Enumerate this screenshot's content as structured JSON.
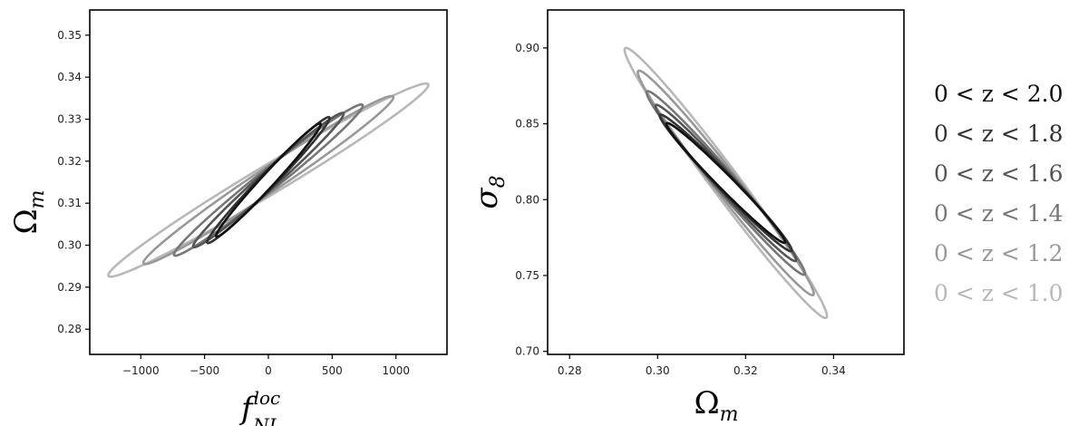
{
  "chart_data": [
    {
      "type": "line",
      "subtype": "confidence-ellipses",
      "title": "",
      "xlabel": "f_NL^loc",
      "ylabel": "Ω_m",
      "xlim": [
        -1400,
        1400
      ],
      "ylim": [
        0.274,
        0.356
      ],
      "xticks": [
        "−1000",
        "−500",
        "0",
        "500",
        "1000"
      ],
      "xtick_values": [
        -1000,
        -500,
        0,
        500,
        1000
      ],
      "yticks": [
        "0.28",
        "0.29",
        "0.30",
        "0.31",
        "0.32",
        "0.33",
        "0.34",
        "0.35"
      ],
      "ytick_values": [
        0.28,
        0.29,
        0.3,
        0.31,
        0.32,
        0.33,
        0.34,
        0.35
      ],
      "grid": false,
      "series": [
        {
          "name": "0 < z < 1.0",
          "color": "#b8b8b8",
          "center": [
            0,
            0.3155
          ],
          "x_extent": [
            -1250,
            1260
          ],
          "y_extent": [
            0.292,
            0.338
          ]
        },
        {
          "name": "0 < z < 1.2",
          "color": "#999999",
          "center": [
            0,
            0.3155
          ],
          "x_extent": [
            -970,
            990
          ],
          "y_extent": [
            0.295,
            0.335
          ]
        },
        {
          "name": "0 < z < 1.4",
          "color": "#777777",
          "center": [
            0,
            0.3155
          ],
          "x_extent": [
            -730,
            750
          ],
          "y_extent": [
            0.297,
            0.333
          ]
        },
        {
          "name": "0 < z < 1.6",
          "color": "#555555",
          "center": [
            0,
            0.3155
          ],
          "x_extent": [
            -580,
            600
          ],
          "y_extent": [
            0.299,
            0.331
          ]
        },
        {
          "name": "0 < z < 1.8",
          "color": "#333333",
          "center": [
            0,
            0.3155
          ],
          "x_extent": [
            -470,
            490
          ],
          "y_extent": [
            0.3,
            0.33
          ]
        },
        {
          "name": "0 < z < 2.0",
          "color": "#111111",
          "center": [
            0,
            0.3155
          ],
          "x_extent": [
            -400,
            420
          ],
          "y_extent": [
            0.301,
            0.328
          ]
        }
      ]
    },
    {
      "type": "line",
      "subtype": "confidence-ellipses",
      "title": "",
      "xlabel": "Ω_m",
      "ylabel": "σ_8",
      "xlim": [
        0.275,
        0.356
      ],
      "ylim": [
        0.698,
        0.925
      ],
      "xticks": [
        "0.28",
        "0.30",
        "0.32",
        "0.34"
      ],
      "xtick_values": [
        0.28,
        0.3,
        0.32,
        0.34
      ],
      "yticks": [
        "0.70",
        "0.75",
        "0.80",
        "0.85",
        "0.90"
      ],
      "ytick_values": [
        0.7,
        0.75,
        0.8,
        0.85,
        0.9
      ],
      "grid": false,
      "series": [
        {
          "name": "0 < z < 1.0",
          "color": "#b8b8b8",
          "center": [
            0.3155,
            0.811
          ],
          "x_extent": [
            0.292,
            0.338
          ],
          "y_extent": [
            0.722,
            0.9
          ]
        },
        {
          "name": "0 < z < 1.2",
          "color": "#999999",
          "center": [
            0.3155,
            0.811
          ],
          "x_extent": [
            0.295,
            0.335
          ],
          "y_extent": [
            0.738,
            0.886
          ]
        },
        {
          "name": "0 < z < 1.4",
          "color": "#777777",
          "center": [
            0.3155,
            0.811
          ],
          "x_extent": [
            0.297,
            0.333
          ],
          "y_extent": [
            0.752,
            0.873
          ]
        },
        {
          "name": "0 < z < 1.6",
          "color": "#555555",
          "center": [
            0.3155,
            0.811
          ],
          "x_extent": [
            0.299,
            0.331
          ],
          "y_extent": [
            0.761,
            0.864
          ]
        },
        {
          "name": "0 < z < 1.8",
          "color": "#333333",
          "center": [
            0.3155,
            0.811
          ],
          "x_extent": [
            0.3,
            0.33
          ],
          "y_extent": [
            0.767,
            0.857
          ]
        },
        {
          "name": "0 < z < 2.0",
          "color": "#111111",
          "center": [
            0.3155,
            0.811
          ],
          "x_extent": [
            0.301,
            0.328
          ],
          "y_extent": [
            0.772,
            0.851
          ]
        }
      ]
    }
  ],
  "legend": {
    "placement": "right",
    "items": [
      {
        "label": "0 < z < 2.0",
        "color": "#111111"
      },
      {
        "label": "0 < z < 1.8",
        "color": "#333333"
      },
      {
        "label": "0 < z < 1.6",
        "color": "#555555"
      },
      {
        "label": "0 < z < 1.4",
        "color": "#777777"
      },
      {
        "label": "0 < z < 1.2",
        "color": "#999999"
      },
      {
        "label": "0 < z < 1.0",
        "color": "#b8b8b8"
      }
    ]
  },
  "axis_titles": {
    "left_x": "f",
    "left_x_sup": "loc",
    "left_x_sub": "NL",
    "left_y": "Ω",
    "left_y_sub": "m",
    "right_x": "Ω",
    "right_x_sub": "m",
    "right_y": "σ",
    "right_y_sub": "8"
  }
}
